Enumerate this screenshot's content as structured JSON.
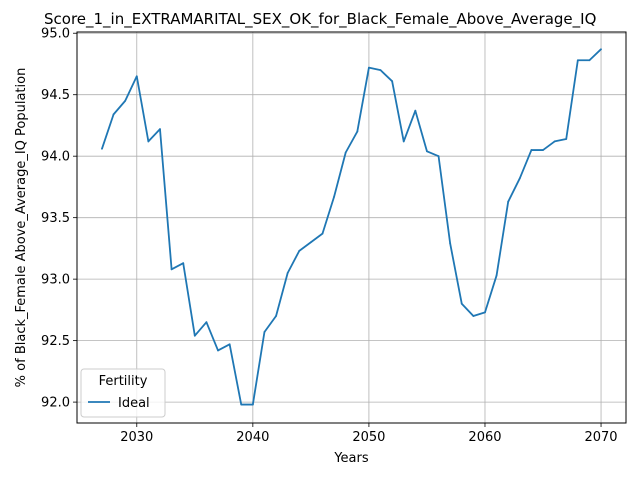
{
  "chart_data": {
    "type": "line",
    "title": "Score_1_in_EXTRAMARITAL_SEX_OK_for_Black_Female_Above_Average_IQ",
    "xlabel": "Years",
    "ylabel": "% of Black_Female Above_Average_IQ Population",
    "xlim": [
      2024.85,
      2072.15
    ],
    "ylim": [
      91.83,
      95.01
    ],
    "xticks": [
      2030,
      2040,
      2050,
      2060,
      2070
    ],
    "yticks": [
      92.0,
      92.5,
      93.0,
      93.5,
      94.0,
      94.5,
      95.0
    ],
    "xtick_labels": [
      "2030",
      "2040",
      "2050",
      "2060",
      "2070"
    ],
    "ytick_labels": [
      "92.0",
      "92.5",
      "93.0",
      "93.5",
      "94.0",
      "94.5",
      "95.0"
    ],
    "grid": true,
    "legend": {
      "title": "Fertility",
      "position": "lower-left"
    },
    "series": [
      {
        "name": "Ideal",
        "color": "#1f77b4",
        "x": [
          2027,
          2028,
          2029,
          2030,
          2031,
          2032,
          2033,
          2034,
          2035,
          2036,
          2037,
          2038,
          2039,
          2040,
          2041,
          2042,
          2043,
          2044,
          2045,
          2046,
          2047,
          2048,
          2049,
          2050,
          2051,
          2052,
          2053,
          2054,
          2055,
          2056,
          2057,
          2058,
          2059,
          2060,
          2061,
          2062,
          2063,
          2064,
          2065,
          2066,
          2067,
          2068,
          2069,
          2070
        ],
        "values": [
          94.06,
          94.34,
          94.45,
          94.65,
          94.12,
          94.22,
          93.08,
          93.13,
          92.54,
          92.65,
          92.42,
          92.47,
          91.98,
          91.98,
          92.57,
          92.7,
          93.05,
          93.23,
          93.3,
          93.37,
          93.67,
          94.03,
          94.2,
          94.72,
          94.7,
          94.61,
          94.12,
          94.37,
          94.04,
          94.0,
          93.29,
          92.8,
          92.7,
          92.73,
          93.03,
          93.63,
          93.82,
          94.05,
          94.05,
          94.12,
          94.14,
          94.78,
          94.78,
          94.87
        ]
      }
    ]
  }
}
